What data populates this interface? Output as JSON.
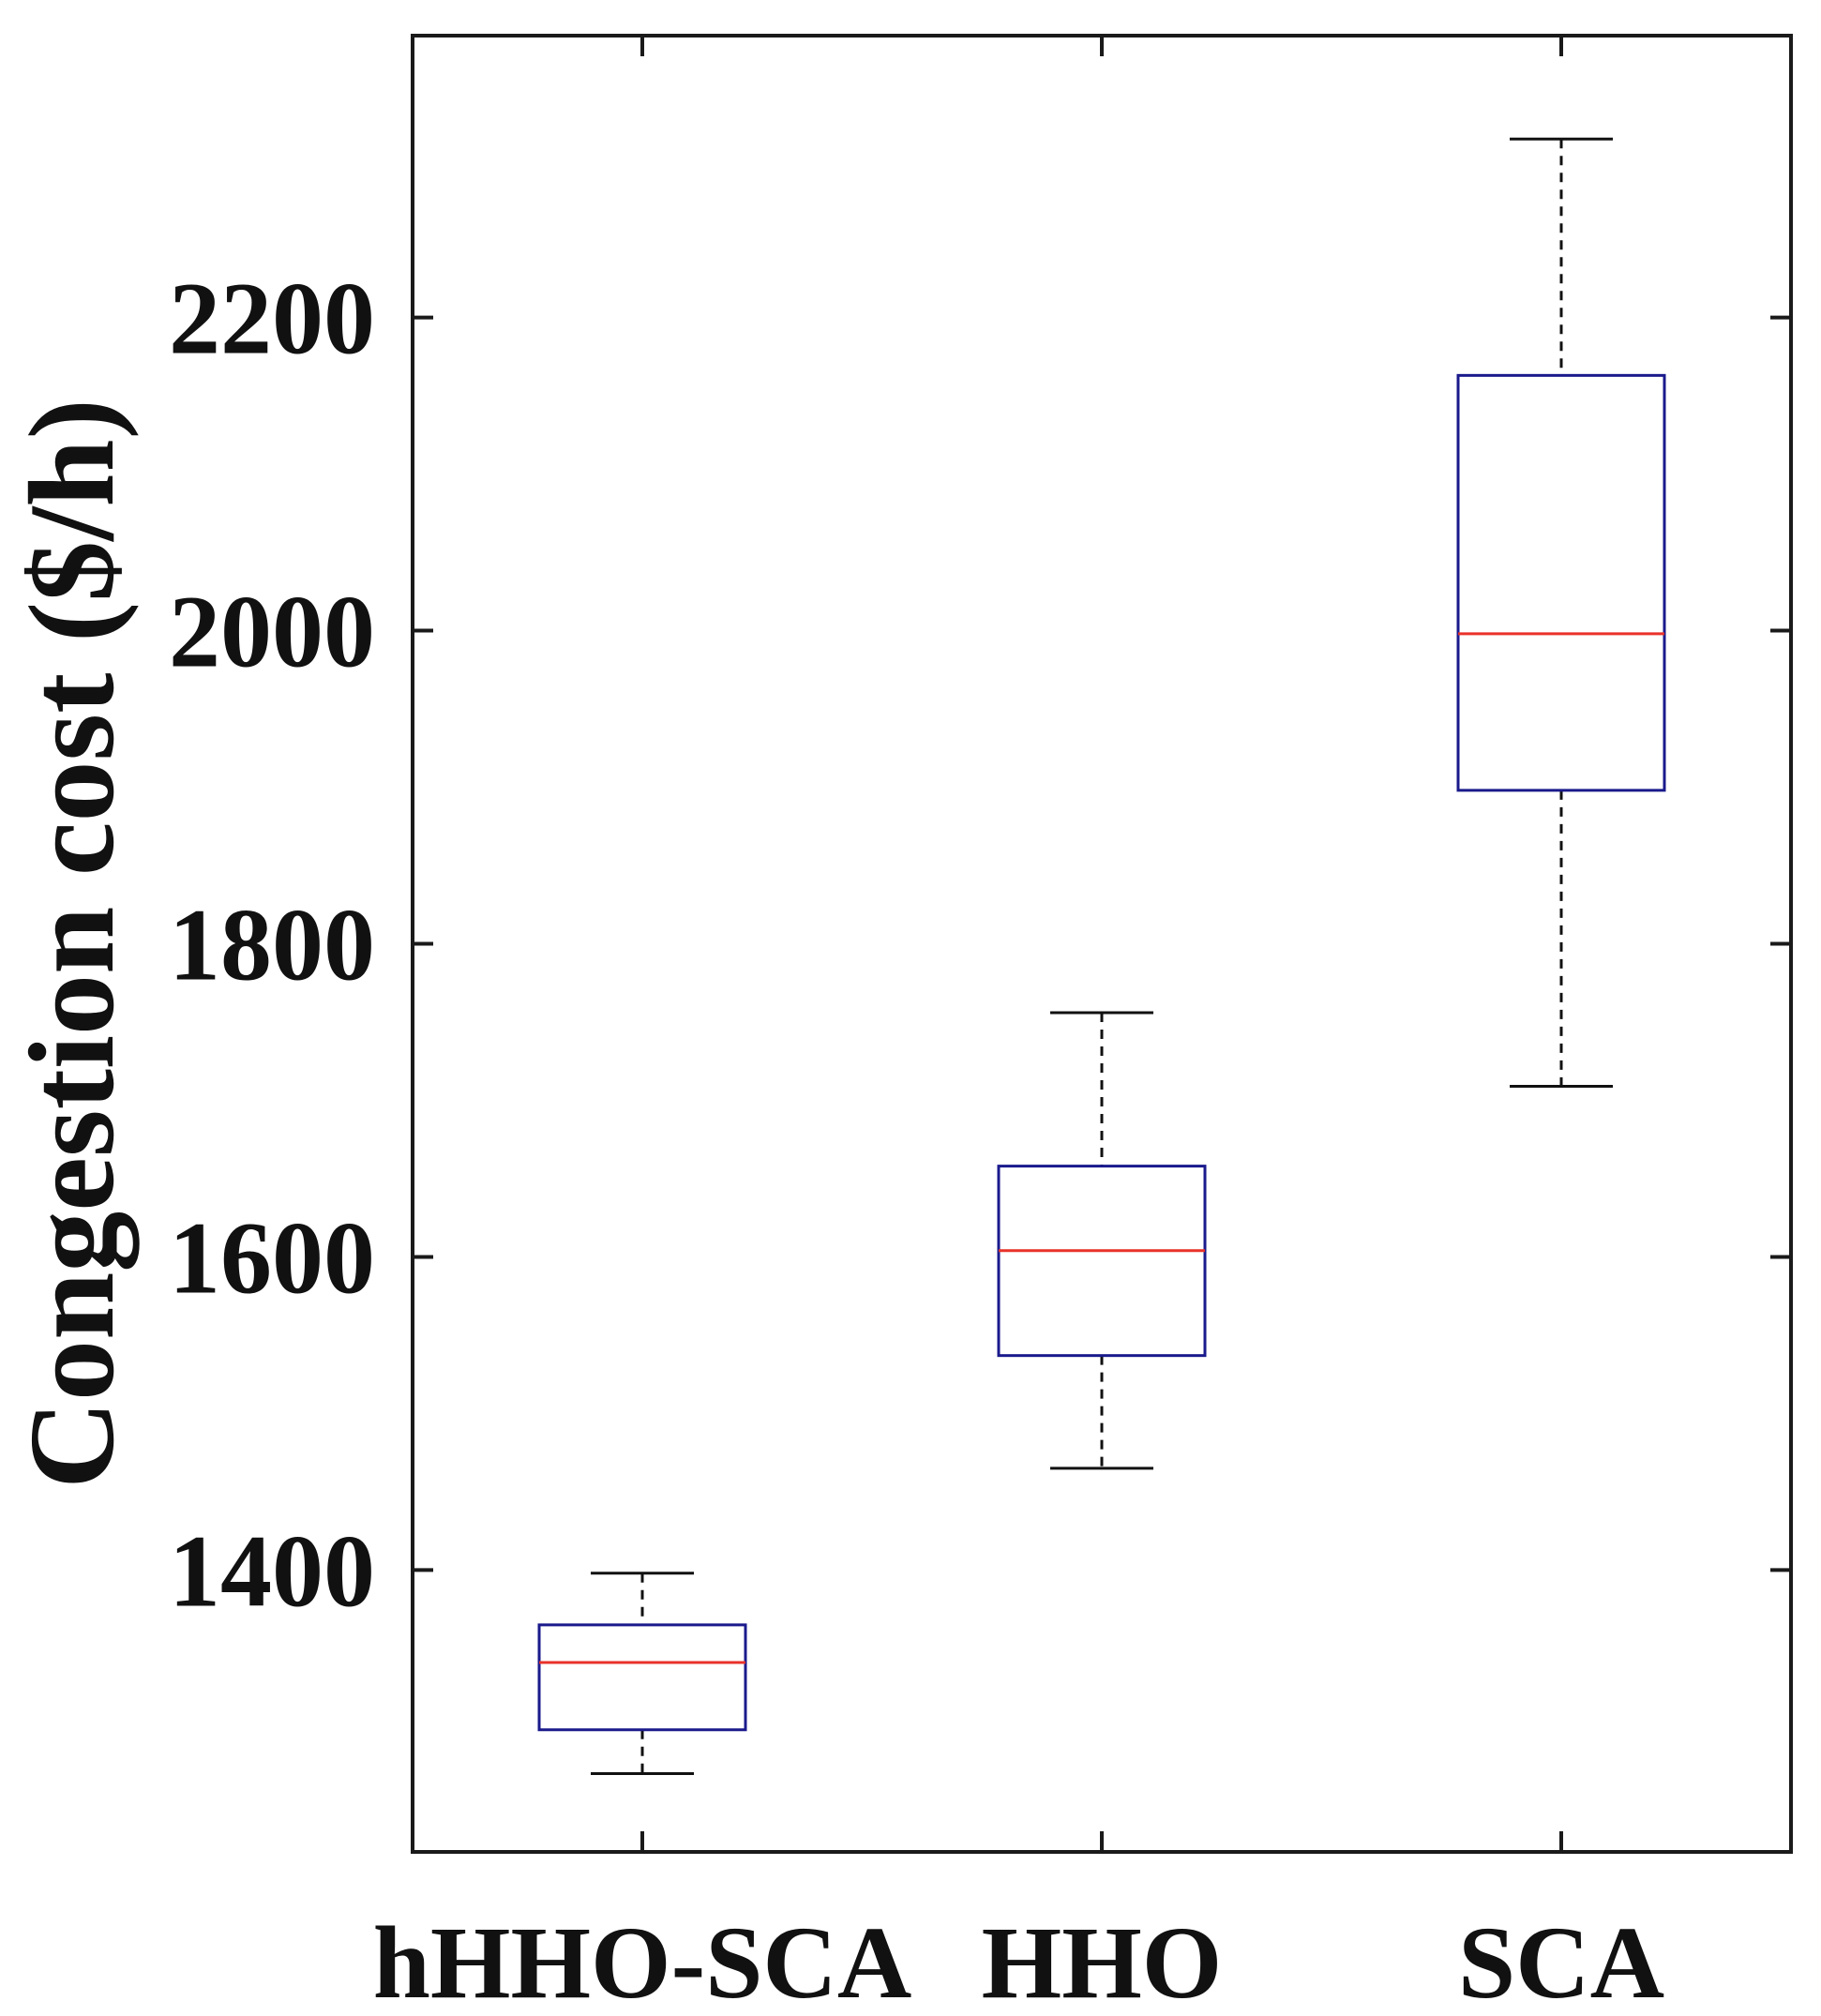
{
  "chart_data": {
    "type": "box",
    "title": "",
    "xlabel": "",
    "ylabel": "Congestion cost ($/h)",
    "ylim": [
      1220,
      2380
    ],
    "yticks": [
      1400,
      1600,
      1800,
      2000,
      2200
    ],
    "grid": false,
    "legend": "none",
    "categories": [
      "hHHO-SCA",
      "HHO",
      "SCA"
    ],
    "boxes": [
      {
        "category": "hHHO-SCA",
        "whisker_low": 1270,
        "q1": 1298,
        "median": 1341,
        "q3": 1365,
        "whisker_high": 1398
      },
      {
        "category": "HHO",
        "whisker_low": 1465,
        "q1": 1537,
        "median": 1604,
        "q3": 1658,
        "whisker_high": 1756
      },
      {
        "category": "SCA",
        "whisker_low": 1709,
        "q1": 1898,
        "median": 1998,
        "q3": 2163,
        "whisker_high": 2314
      }
    ],
    "colors": {
      "box": "#1a1a8c",
      "median": "#e8322a",
      "whisker": "#111111",
      "axes": "#1a1a1a"
    }
  }
}
